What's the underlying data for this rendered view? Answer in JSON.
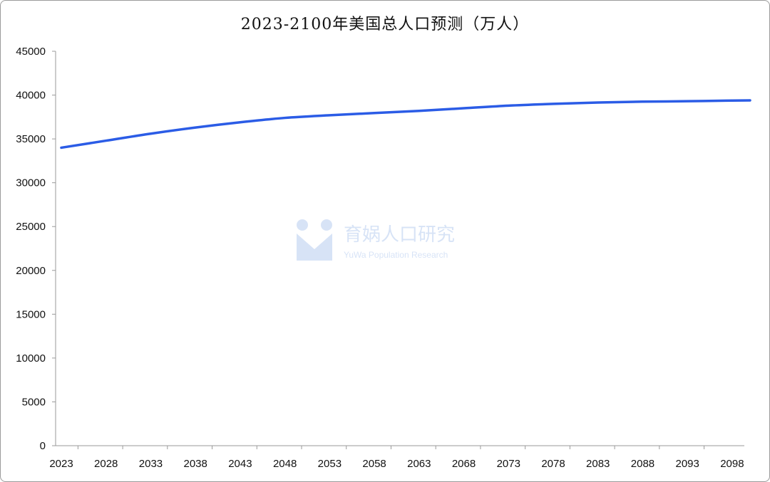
{
  "chart_data": {
    "type": "line",
    "title": "2023-2100年美国总人口预测（万人）",
    "xlabel": "",
    "ylabel": "",
    "ylim": [
      0,
      45000
    ],
    "yticks": [
      "0",
      "5000",
      "10000",
      "15000",
      "20000",
      "25000",
      "30000",
      "35000",
      "40000",
      "45000"
    ],
    "xticks": [
      "2023",
      "2028",
      "2033",
      "2038",
      "2043",
      "2048",
      "2053",
      "2058",
      "2063",
      "2068",
      "2073",
      "2078",
      "2083",
      "2088",
      "2093",
      "2098"
    ],
    "xlim": [
      2023,
      2100
    ],
    "grid": false,
    "legend": "none",
    "series": [
      {
        "color": "#2b5ce6",
        "x": [
          2023,
          2028,
          2033,
          2038,
          2043,
          2048,
          2053,
          2058,
          2063,
          2068,
          2073,
          2078,
          2083,
          2088,
          2093,
          2098,
          2100
        ],
        "values": [
          34000,
          34800,
          35600,
          36300,
          36900,
          37400,
          37700,
          37950,
          38200,
          38500,
          38800,
          39000,
          39150,
          39250,
          39300,
          39380,
          39400
        ]
      }
    ]
  },
  "watermark": {
    "title": "育娲人口研究",
    "subtitle": "YuWa Population Research"
  }
}
